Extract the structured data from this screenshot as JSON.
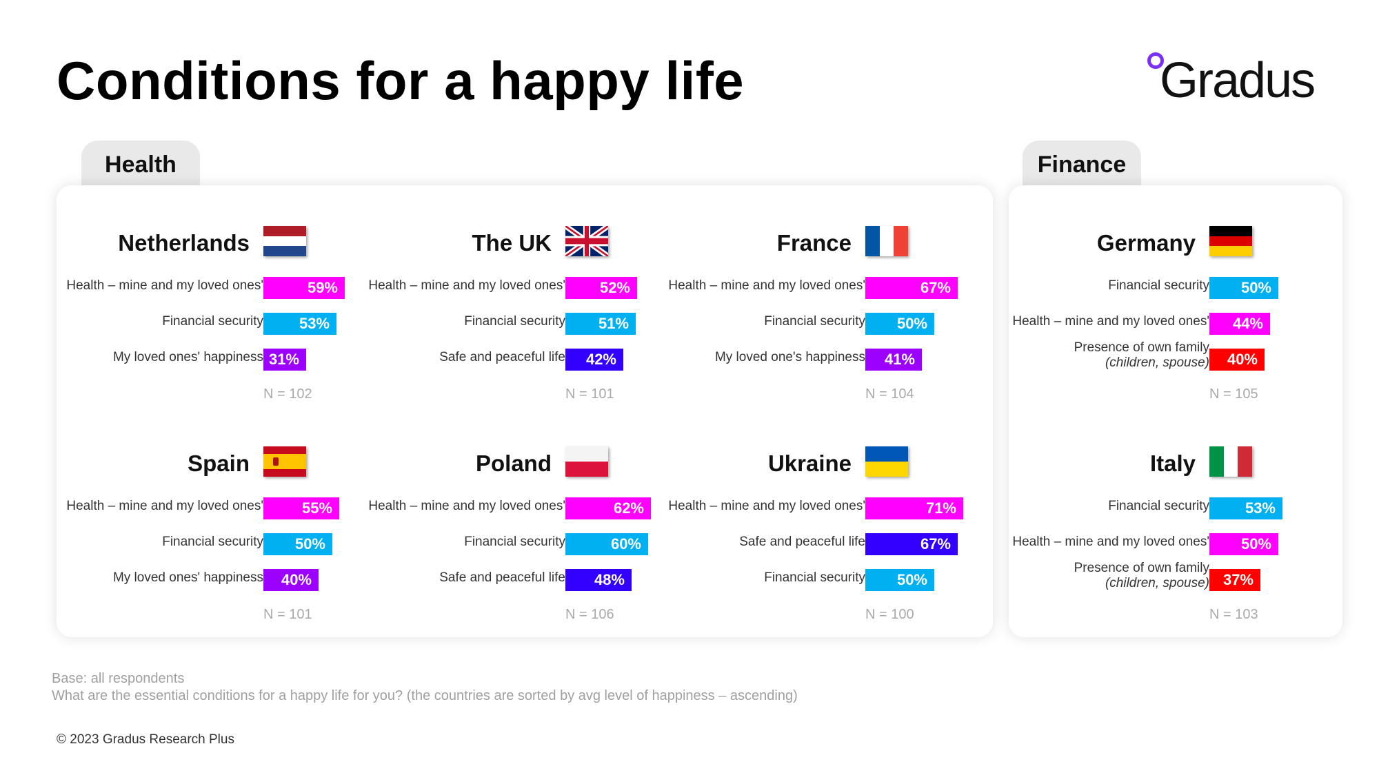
{
  "title": "Conditions for a happy life",
  "logo": {
    "text": "Gradus",
    "dot_color": "#7b2ff7"
  },
  "tabs": {
    "health": "Health",
    "finance": "Finance"
  },
  "colors": {
    "health": "#ff00ff",
    "financial_security": "#00b0f0",
    "loved_ones_happiness": "#9c00ff",
    "safe_peaceful": "#3300ff",
    "family": "#ff0000"
  },
  "footnotes": {
    "base": "Base: all respondents",
    "question": "What are the essential conditions for a happy life for you? (the countries are sorted by avg level of happiness – ascending)"
  },
  "copyright": "© 2023 Gradus Research Plus",
  "chart_data": [
    {
      "type": "bar",
      "title": "Netherlands",
      "flag": "netherlands",
      "n": "N = 102",
      "categories": [
        "Health – mine and my loved ones'",
        "Financial security",
        "My loved ones' happiness"
      ],
      "categories_sub": [
        "",
        "",
        ""
      ],
      "values": [
        59,
        53,
        31
      ],
      "value_labels": [
        "59%",
        "53%",
        "31%"
      ],
      "colors": [
        "#ff00ff",
        "#00b0f0",
        "#9c00ff"
      ]
    },
    {
      "type": "bar",
      "title": "The UK",
      "flag": "uk",
      "n": "N = 101",
      "categories": [
        "Health – mine and my loved ones'",
        "Financial security",
        "Safe and peaceful life"
      ],
      "categories_sub": [
        "",
        "",
        ""
      ],
      "values": [
        52,
        51,
        42
      ],
      "value_labels": [
        "52%",
        "51%",
        "42%"
      ],
      "colors": [
        "#ff00ff",
        "#00b0f0",
        "#3300ff"
      ]
    },
    {
      "type": "bar",
      "title": "France",
      "flag": "france",
      "n": "N = 104",
      "categories": [
        "Health – mine and my loved ones'",
        "Financial security",
        "My loved one's happiness"
      ],
      "categories_sub": [
        "",
        "",
        ""
      ],
      "values": [
        67,
        50,
        41
      ],
      "value_labels": [
        "67%",
        "50%",
        "41%"
      ],
      "colors": [
        "#ff00ff",
        "#00b0f0",
        "#9c00ff"
      ]
    },
    {
      "type": "bar",
      "title": "Germany",
      "flag": "germany",
      "n": "N = 105",
      "categories": [
        "Financial security",
        "Health – mine and my loved ones'",
        "Presence of own family"
      ],
      "categories_sub": [
        "",
        "",
        "(children, spouse)"
      ],
      "values": [
        50,
        44,
        40
      ],
      "value_labels": [
        "50%",
        "44%",
        "40%"
      ],
      "colors": [
        "#00b0f0",
        "#ff00ff",
        "#ff0000"
      ]
    },
    {
      "type": "bar",
      "title": "Spain",
      "flag": "spain",
      "n": "N = 101",
      "categories": [
        "Health – mine and my loved ones'",
        "Financial security",
        "My loved ones' happiness"
      ],
      "categories_sub": [
        "",
        "",
        ""
      ],
      "values": [
        55,
        50,
        40
      ],
      "value_labels": [
        "55%",
        "50%",
        "40%"
      ],
      "colors": [
        "#ff00ff",
        "#00b0f0",
        "#9c00ff"
      ]
    },
    {
      "type": "bar",
      "title": "Poland",
      "flag": "poland",
      "n": "N = 106",
      "categories": [
        "Health – mine and my loved ones'",
        "Financial security",
        "Safe and peaceful life"
      ],
      "categories_sub": [
        "",
        "",
        ""
      ],
      "values": [
        62,
        60,
        48
      ],
      "value_labels": [
        "62%",
        "60%",
        "48%"
      ],
      "colors": [
        "#ff00ff",
        "#00b0f0",
        "#3300ff"
      ]
    },
    {
      "type": "bar",
      "title": "Ukraine",
      "flag": "ukraine",
      "n": "N = 100",
      "categories": [
        "Health – mine and my loved ones'",
        "Safe and peaceful life",
        "Financial security"
      ],
      "categories_sub": [
        "",
        "",
        ""
      ],
      "values": [
        71,
        67,
        50
      ],
      "value_labels": [
        "71%",
        "67%",
        "50%"
      ],
      "colors": [
        "#ff00ff",
        "#3300ff",
        "#00b0f0"
      ]
    },
    {
      "type": "bar",
      "title": "Italy",
      "flag": "italy",
      "n": "N = 103",
      "categories": [
        "Financial security",
        "Health – mine and my loved ones'",
        "Presence of own family"
      ],
      "categories_sub": [
        "",
        "",
        "(children, spouse)"
      ],
      "values": [
        53,
        50,
        37
      ],
      "value_labels": [
        "53%",
        "50%",
        "37%"
      ],
      "colors": [
        "#00b0f0",
        "#ff00ff",
        "#ff0000"
      ]
    }
  ]
}
